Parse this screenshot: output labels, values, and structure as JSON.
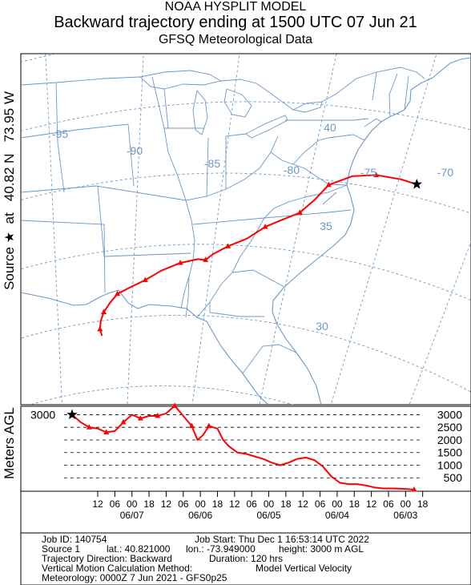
{
  "header": {
    "line1": "NOAA HYSPLIT MODEL",
    "line2": "Backward trajectory ending at 1500 UTC 07 Jun 21",
    "line3": "GFSQ Meteorological Data"
  },
  "side_label": {
    "prefix": "Source",
    "star": "★",
    "middle": "at",
    "lat": "40.82 N",
    "lon": "73.95 W"
  },
  "map": {
    "source_marker": "star-icon",
    "trajectory_color": "#ff0000",
    "grid_color": "#6a98c8",
    "lon_labels": [
      "-95",
      "-90",
      "-85",
      "-80",
      "-75",
      "-70"
    ],
    "lat_labels": [
      "40",
      "35",
      "30"
    ],
    "source_point": {
      "lat": 40.82,
      "lon": -73.95
    },
    "trajectory": [
      {
        "lat": 40.82,
        "lon": -73.95
      },
      {
        "lat": 40.9,
        "lon": -74.9
      },
      {
        "lat": 40.85,
        "lon": -76.3
      },
      {
        "lat": 40.5,
        "lon": -77.6
      },
      {
        "lat": 39.7,
        "lon": -78.8
      },
      {
        "lat": 38.6,
        "lon": -79.4
      },
      {
        "lat": 37.6,
        "lon": -80.1
      },
      {
        "lat": 36.9,
        "lon": -81.2
      },
      {
        "lat": 36.4,
        "lon": -82.0
      },
      {
        "lat": 35.5,
        "lon": -83.0
      },
      {
        "lat": 34.9,
        "lon": -84.1
      },
      {
        "lat": 34.3,
        "lon": -85.0
      },
      {
        "lat": 33.9,
        "lon": -85.4
      },
      {
        "lat": 33.95,
        "lon": -85.9
      },
      {
        "lat": 33.7,
        "lon": -87.0
      },
      {
        "lat": 33.2,
        "lon": -88.2
      },
      {
        "lat": 32.6,
        "lon": -89.2
      },
      {
        "lat": 32.2,
        "lon": -90.1
      },
      {
        "lat": 31.8,
        "lon": -91.0
      },
      {
        "lat": 31.2,
        "lon": -91.5
      },
      {
        "lat": 30.6,
        "lon": -91.9
      },
      {
        "lat": 30.0,
        "lon": -92.1
      },
      {
        "lat": 29.4,
        "lon": -92.15
      },
      {
        "lat": 28.9,
        "lon": -92.0
      }
    ]
  },
  "vertical": {
    "ylabel": "Meters AGL",
    "left_label": "3000",
    "right_labels": [
      "3000",
      "2500",
      "2000",
      "1500",
      "1000",
      "500"
    ],
    "gridlines": [
      500,
      1000,
      1500,
      2000,
      2500,
      3000
    ],
    "ylim": [
      0,
      3300
    ],
    "hours_back_range": [
      0,
      120
    ],
    "profile": [
      {
        "h": 0,
        "agl": 3000
      },
      {
        "h": 3,
        "agl": 2700
      },
      {
        "h": 6,
        "agl": 2500
      },
      {
        "h": 9,
        "agl": 2450
      },
      {
        "h": 12,
        "agl": 2300
      },
      {
        "h": 15,
        "agl": 2350
      },
      {
        "h": 18,
        "agl": 2700
      },
      {
        "h": 21,
        "agl": 3000
      },
      {
        "h": 24,
        "agl": 2850
      },
      {
        "h": 27,
        "agl": 2950
      },
      {
        "h": 30,
        "agl": 2950
      },
      {
        "h": 33,
        "agl": 3050
      },
      {
        "h": 36,
        "agl": 3350
      },
      {
        "h": 39,
        "agl": 2950
      },
      {
        "h": 42,
        "agl": 2550
      },
      {
        "h": 44,
        "agl": 2000
      },
      {
        "h": 46,
        "agl": 2200
      },
      {
        "h": 48,
        "agl": 2550
      },
      {
        "h": 51,
        "agl": 2450
      },
      {
        "h": 53,
        "agl": 2000
      },
      {
        "h": 55,
        "agl": 1750
      },
      {
        "h": 58,
        "agl": 1500
      },
      {
        "h": 61,
        "agl": 1450
      },
      {
        "h": 64,
        "agl": 1350
      },
      {
        "h": 67,
        "agl": 1250
      },
      {
        "h": 70,
        "agl": 1100
      },
      {
        "h": 73,
        "agl": 1000
      },
      {
        "h": 76,
        "agl": 1100
      },
      {
        "h": 79,
        "agl": 1250
      },
      {
        "h": 82,
        "agl": 1300
      },
      {
        "h": 85,
        "agl": 1200
      },
      {
        "h": 88,
        "agl": 950
      },
      {
        "h": 91,
        "agl": 550
      },
      {
        "h": 94,
        "agl": 300
      },
      {
        "h": 97,
        "agl": 250
      },
      {
        "h": 100,
        "agl": 250
      },
      {
        "h": 103,
        "agl": 200
      },
      {
        "h": 106,
        "agl": 120
      },
      {
        "h": 109,
        "agl": 80
      },
      {
        "h": 112,
        "agl": 80
      },
      {
        "h": 115,
        "agl": 70
      },
      {
        "h": 118,
        "agl": 50
      },
      {
        "h": 120,
        "agl": 30
      }
    ],
    "hour_ticks": [
      "12",
      "06",
      "00",
      "18",
      "12",
      "06",
      "00",
      "18",
      "12",
      "06",
      "00",
      "18",
      "12",
      "06",
      "00",
      "18",
      "12",
      "06",
      "00",
      "18"
    ],
    "date_labels": [
      "06/07",
      "06/06",
      "06/05",
      "06/04",
      "06/03"
    ]
  },
  "info": {
    "job_id": "Job ID: 140754",
    "job_start": "Job Start: Thu Dec  1 16:53:14 UTC 2022",
    "source": "Source 1",
    "lat": "lat.: 40.821000",
    "lon": "lon.: -73.949000",
    "height": "height: 3000 m AGL",
    "direction": "Trajectory Direction: Backward",
    "duration": "Duration: 120 hrs",
    "vmethod": "Vertical Motion Calculation Method:",
    "vmodel": "Model Vertical Velocity",
    "meteorology": "Meteorology: 0000Z  7 Jun 2021 - GFS0p25"
  }
}
